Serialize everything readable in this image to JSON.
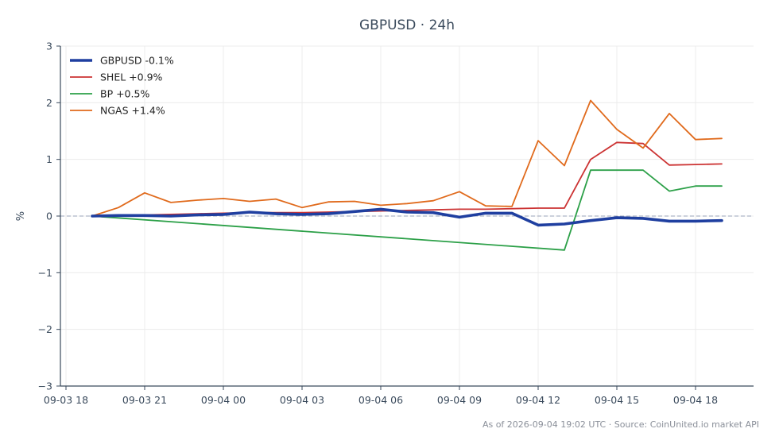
{
  "chart_data": {
    "type": "line",
    "title": "GBPUSD · 24h",
    "xlabel": "",
    "ylabel": "%",
    "ylim": [
      -3,
      3
    ],
    "yticks": [
      3,
      2,
      1,
      0,
      -1,
      -2,
      -3
    ],
    "ytick_labels": [
      "3",
      "2",
      "1",
      "0",
      "−1",
      "−2",
      "−3"
    ],
    "x_ticks": [
      {
        "hour": 0,
        "label": "09-03 18"
      },
      {
        "hour": 3,
        "label": "09-03 21"
      },
      {
        "hour": 6,
        "label": "09-04 00"
      },
      {
        "hour": 9,
        "label": "09-04 03"
      },
      {
        "hour": 12,
        "label": "09-04 06"
      },
      {
        "hour": 15,
        "label": "09-04 09"
      },
      {
        "hour": 18,
        "label": "09-04 12"
      },
      {
        "hour": 21,
        "label": "09-04 15"
      },
      {
        "hour": 24,
        "label": "09-04 18"
      }
    ],
    "grid": true,
    "zero_line": true,
    "legend_position": "top-left",
    "series": [
      {
        "name": "GBPUSD -0.1%",
        "color": "#1f3fa0",
        "line_weight": "thick",
        "x": [
          1,
          2,
          3,
          4,
          5,
          6,
          7,
          8,
          9,
          10,
          11,
          12,
          13,
          14,
          15,
          16,
          17,
          18,
          19,
          20,
          21,
          22,
          23,
          24,
          25
        ],
        "values": [
          0.0,
          0.01,
          0.01,
          0.0,
          0.02,
          0.03,
          0.07,
          0.04,
          0.03,
          0.04,
          0.08,
          0.12,
          0.07,
          0.06,
          -0.02,
          0.05,
          0.05,
          -0.16,
          -0.14,
          -0.08,
          -0.03,
          -0.04,
          -0.09,
          -0.09,
          -0.08
        ]
      },
      {
        "name": "SHEL +0.9%",
        "color": "#cc3333",
        "line_weight": "normal",
        "x": [
          1,
          2,
          3,
          4,
          5,
          6,
          7,
          8,
          9,
          10,
          11,
          12,
          13,
          14,
          15,
          16,
          17,
          18,
          19,
          20,
          21,
          22,
          23,
          24,
          25
        ],
        "values": [
          0.0,
          0.02,
          0.02,
          0.03,
          0.04,
          0.05,
          0.06,
          0.06,
          0.06,
          0.07,
          0.08,
          0.09,
          0.1,
          0.11,
          0.12,
          0.12,
          0.13,
          0.14,
          0.14,
          1.0,
          1.3,
          1.28,
          0.9,
          0.91,
          0.92
        ]
      },
      {
        "name": "BP +0.5%",
        "color": "#2ca048",
        "line_weight": "normal",
        "x": [
          1,
          19,
          20,
          21,
          22,
          23,
          24,
          25
        ],
        "values": [
          0.0,
          -0.6,
          0.81,
          0.81,
          0.81,
          0.44,
          0.53,
          0.53
        ]
      },
      {
        "name": "NGAS +1.4%",
        "color": "#e06a1c",
        "line_weight": "normal",
        "x": [
          1,
          2,
          3,
          4,
          5,
          6,
          7,
          8,
          9,
          10,
          11,
          12,
          13,
          14,
          15,
          16,
          17,
          18,
          19,
          20,
          21,
          22,
          23,
          24,
          25
        ],
        "values": [
          0.0,
          0.15,
          0.41,
          0.24,
          0.28,
          0.31,
          0.26,
          0.3,
          0.15,
          0.25,
          0.26,
          0.19,
          0.22,
          0.27,
          0.43,
          0.18,
          0.17,
          1.33,
          0.89,
          2.04,
          1.53,
          1.2,
          1.81,
          1.35,
          1.37
        ]
      }
    ]
  },
  "footer": {
    "text": "As of 2026-09-04 19:02 UTC · Source: CoinUnited.io market API"
  }
}
